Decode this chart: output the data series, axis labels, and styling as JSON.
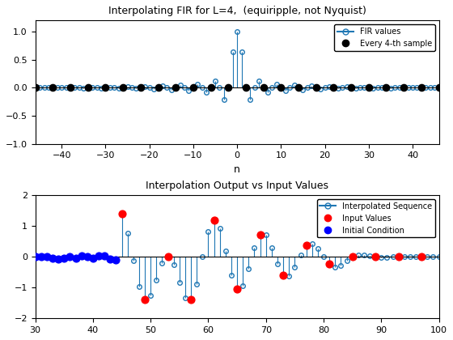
{
  "title1": "Interpolating FIR for L=4,  (equiripple, not Nyquist)",
  "xlabel1": "n",
  "title2": "Interpolation Output vs Input Values",
  "xlim1": [
    -46,
    46
  ],
  "ylim1": [
    -1.0,
    1.2
  ],
  "xlim2": [
    30,
    100
  ],
  "ylim2": [
    -2.0,
    2.0
  ],
  "L": 4,
  "bg_color": "#ffffff",
  "stem_color1": "#1f77b4",
  "marker_color1": "#000000",
  "stem_color2": "#1f77b4",
  "input_color": "#ff0000",
  "ic_color": "#0000ff",
  "legend1_labels": [
    "FIR values",
    "Every 4-th sample"
  ],
  "legend2_labels": [
    "Interpolated Sequence",
    "Input Values",
    "Initial Condition"
  ],
  "yticks1": [
    -1,
    -0.5,
    0,
    0.5,
    1
  ],
  "xticks1": [
    -40,
    -30,
    -20,
    -10,
    0,
    10,
    20,
    30,
    40
  ],
  "yticks2": [
    -2,
    -1,
    0,
    1,
    2
  ],
  "xticks2": [
    30,
    40,
    50,
    60,
    70,
    80,
    90,
    100
  ]
}
